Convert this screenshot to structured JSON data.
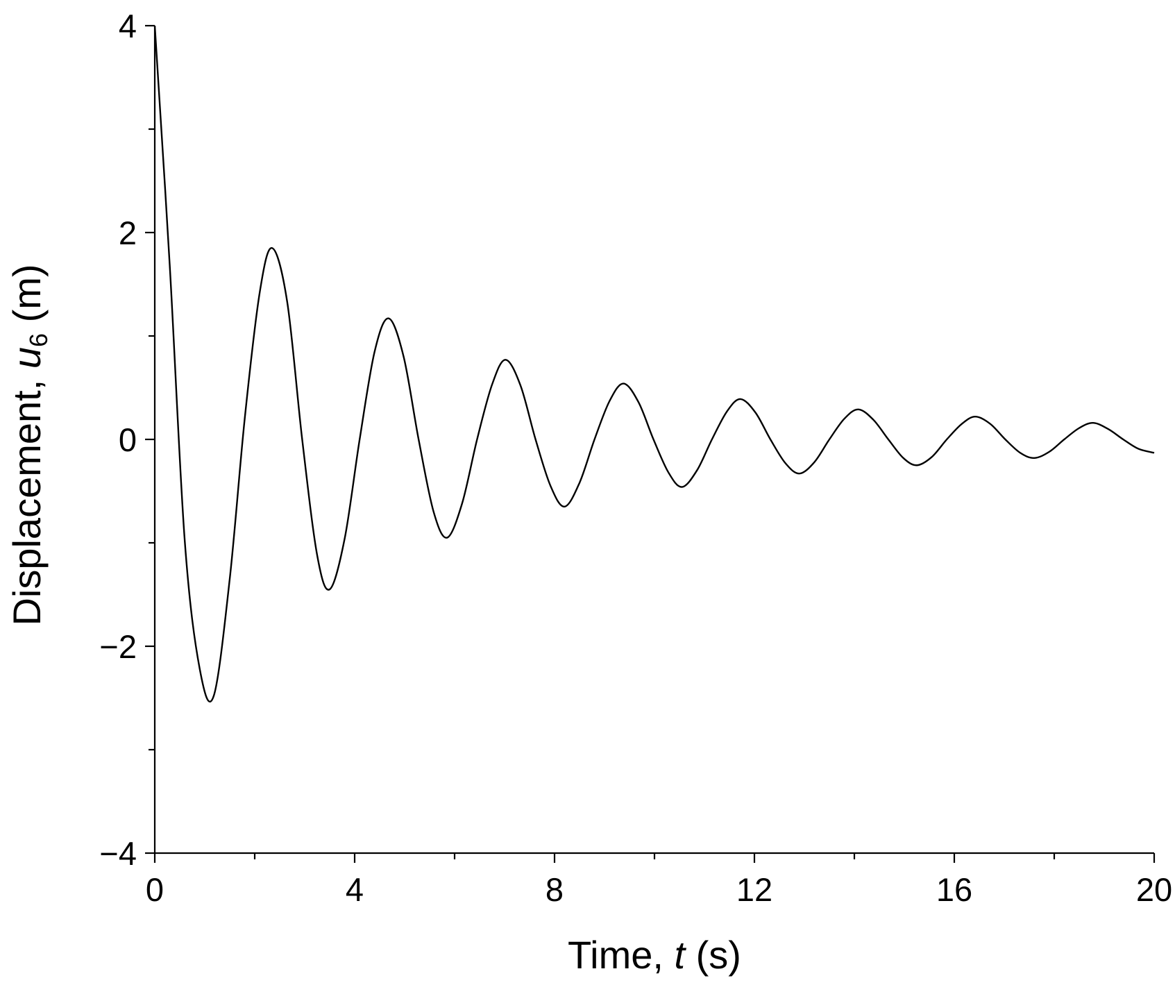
{
  "chart_data": {
    "type": "line",
    "title": "",
    "xlabel": {
      "prefix": "Time, ",
      "variable": "t",
      "unit": " (s)"
    },
    "ylabel": {
      "prefix": "Displacement, ",
      "variable": "u",
      "subscript": "6",
      "unit": " (m)"
    },
    "xlim": [
      0,
      20
    ],
    "ylim": [
      -4,
      4
    ],
    "x_ticks": [
      0,
      4,
      8,
      12,
      16,
      20
    ],
    "x_tick_labels": [
      "0",
      "4",
      "8",
      "12",
      "16",
      "20"
    ],
    "x_minor_ticks": [
      2,
      6,
      10,
      14,
      18
    ],
    "y_ticks": [
      -4,
      -2,
      0,
      2,
      4
    ],
    "y_tick_labels": [
      "−4",
      "−2",
      "0",
      "2",
      "4"
    ],
    "y_minor_ticks": [
      -3,
      -1,
      1,
      3
    ],
    "grid": false,
    "legend": "none",
    "line_color": "#000000",
    "series": [
      {
        "x": [
          0,
          0.3,
          0.6,
          0.9,
          1.18,
          1.5,
          1.8,
          2.1,
          2.35,
          2.65,
          2.95,
          3.25,
          3.5,
          3.8,
          4.1,
          4.4,
          4.68,
          4.98,
          5.28,
          5.58,
          5.85,
          6.15,
          6.45,
          6.75,
          7.02,
          7.32,
          7.62,
          7.92,
          8.2,
          8.5,
          8.8,
          9.1,
          9.38,
          9.68,
          9.98,
          10.28,
          10.55,
          10.85,
          11.15,
          11.45,
          11.72,
          12.02,
          12.32,
          12.62,
          12.9,
          13.2,
          13.5,
          13.8,
          14.08,
          14.38,
          14.68,
          14.98,
          15.25,
          15.55,
          15.85,
          16.15,
          16.42,
          16.72,
          17.02,
          17.32,
          17.6,
          17.9,
          18.2,
          18.5,
          18.78,
          19.08,
          19.38,
          19.68,
          20
        ],
        "y": [
          4.0,
          1.68,
          -0.98,
          -2.22,
          -2.48,
          -1.35,
          0.2,
          1.42,
          1.85,
          1.33,
          0.0,
          -1.12,
          -1.45,
          -0.96,
          0.0,
          0.85,
          1.17,
          0.8,
          0.0,
          -0.7,
          -0.95,
          -0.62,
          0.0,
          0.53,
          0.77,
          0.52,
          0.0,
          -0.45,
          -0.65,
          -0.42,
          0.0,
          0.37,
          0.54,
          0.36,
          0.0,
          -0.32,
          -0.46,
          -0.3,
          0.0,
          0.27,
          0.39,
          0.26,
          0.0,
          -0.23,
          -0.33,
          -0.22,
          0.0,
          0.2,
          0.29,
          0.19,
          0.0,
          -0.18,
          -0.25,
          -0.17,
          0.0,
          0.15,
          0.22,
          0.15,
          0.0,
          -0.13,
          -0.18,
          -0.12,
          0.0,
          0.11,
          0.16,
          0.1,
          0.0,
          -0.09,
          -0.13
        ]
      }
    ]
  }
}
